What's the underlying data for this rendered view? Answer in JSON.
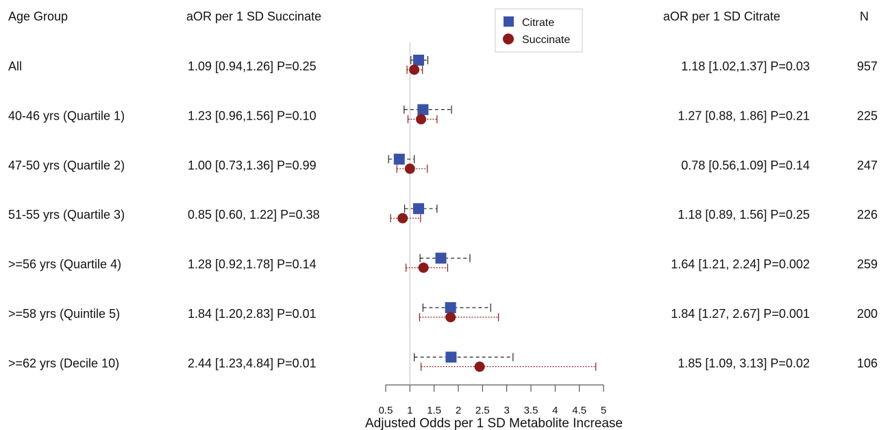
{
  "chart_data": {
    "type": "forest",
    "xlabel": "Adjusted Odds per 1 SD Metabolite Increase",
    "xlim": [
      0.5,
      5
    ],
    "xticks": [
      "0.5",
      "1",
      "1.5",
      "2",
      "2.5",
      "3",
      "3.5",
      "4",
      "4.5",
      "5"
    ],
    "reference_line": 1,
    "headers": {
      "group": "Age Group",
      "succinate": "aOR per 1 SD Succinate",
      "citrate": "aOR per 1 SD Citrate",
      "n": "N"
    },
    "legend": {
      "placement": "top-center",
      "items": [
        {
          "name": "Citrate",
          "marker": "square",
          "color": "#3a52a6",
          "line": "dashed"
        },
        {
          "name": "Succinate",
          "marker": "circle",
          "color": "#8b1a1a",
          "line": "dotted"
        }
      ]
    },
    "rows": [
      {
        "group": "All",
        "succinate_text": "1.09 [0.94,1.26] P=0.25",
        "citrate_text": "1.18 [1.02,1.37] P=0.03",
        "n": "957",
        "citrate": {
          "est": 1.18,
          "lo": 1.02,
          "hi": 1.37
        },
        "succinate": {
          "est": 1.09,
          "lo": 0.94,
          "hi": 1.26
        }
      },
      {
        "group": "40-46 yrs (Quartile 1)",
        "succinate_text": "1.23 [0.96,1.56] P=0.10",
        "citrate_text": "1.27 [0.88, 1.86] P=0.21",
        "n": "225",
        "citrate": {
          "est": 1.27,
          "lo": 0.88,
          "hi": 1.86
        },
        "succinate": {
          "est": 1.23,
          "lo": 0.96,
          "hi": 1.56
        }
      },
      {
        "group": "47-50 yrs (Quartile 2)",
        "succinate_text": "1.00 [0.73,1.36] P=0.99",
        "citrate_text": "0.78 [0.56,1.09] P=0.14",
        "n": "247",
        "citrate": {
          "est": 0.78,
          "lo": 0.56,
          "hi": 1.09
        },
        "succinate": {
          "est": 1.0,
          "lo": 0.73,
          "hi": 1.36
        }
      },
      {
        "group": "51-55 yrs (Quartile 3)",
        "succinate_text": "0.85 [0.60, 1.22] P=0.38",
        "citrate_text": "1.18 [0.89, 1.56] P=0.25",
        "n": "226",
        "citrate": {
          "est": 1.18,
          "lo": 0.89,
          "hi": 1.56
        },
        "succinate": {
          "est": 0.85,
          "lo": 0.6,
          "hi": 1.22
        }
      },
      {
        "group": ">=56 yrs (Quartile 4)",
        "succinate_text": "1.28 [0.92,1.78] P=0.14",
        "citrate_text": "1.64 [1.21, 2.24] P=0.002",
        "n": "259",
        "citrate": {
          "est": 1.64,
          "lo": 1.21,
          "hi": 2.24
        },
        "succinate": {
          "est": 1.28,
          "lo": 0.92,
          "hi": 1.78
        }
      },
      {
        "group": ">=58 yrs (Quintile 5)",
        "succinate_text": "1.84 [1.20,2.83] P=0.01",
        "citrate_text": "1.84 [1.27, 2.67] P=0.001",
        "n": "200",
        "citrate": {
          "est": 1.84,
          "lo": 1.27,
          "hi": 2.67
        },
        "succinate": {
          "est": 1.84,
          "lo": 1.2,
          "hi": 2.83
        }
      },
      {
        "group": ">=62 yrs (Decile 10)",
        "succinate_text": "2.44 [1.23,4.84] P=0.01",
        "citrate_text": "1.85 [1.09, 3.13] P=0.02",
        "n": "106",
        "citrate": {
          "est": 1.85,
          "lo": 1.09,
          "hi": 3.13
        },
        "succinate": {
          "est": 2.44,
          "lo": 1.23,
          "hi": 4.84
        }
      }
    ]
  }
}
